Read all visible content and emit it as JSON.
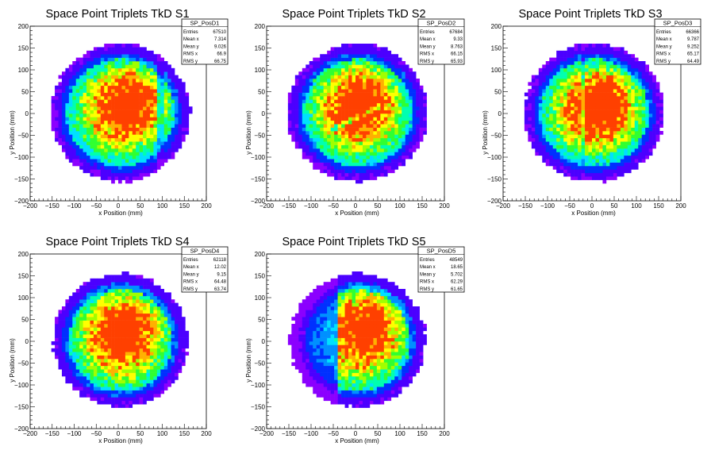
{
  "chart_data": [
    {
      "type": "heatmap",
      "title": "Space Point Triplets TkD S1",
      "xlabel": "x Position (mm)",
      "ylabel": "y Position (mm)",
      "xlim": [
        -200,
        200
      ],
      "ylim": [
        -200,
        200
      ],
      "xticks": [
        "−200",
        "−150",
        "−100",
        "−50",
        "0",
        "50",
        "100",
        "150",
        "200"
      ],
      "yticks": [
        "−200",
        "−150",
        "−100",
        "−50",
        "0",
        "50",
        "100",
        "150",
        "200"
      ],
      "stats": {
        "name": "SP_PosD1",
        "rows": [
          {
            "label": "Entries",
            "value": "67510"
          },
          {
            "label": "Mean x",
            "value": "7.314"
          },
          {
            "label": "Mean y",
            "value": "9.026"
          },
          {
            "label": "RMS x",
            "value": "66.9"
          },
          {
            "label": "RMS y",
            "value": "66.75"
          }
        ]
      },
      "distribution": {
        "center_x": 7.314,
        "center_y": 9.026,
        "radius": 155,
        "hot_spot": [
          40,
          40
        ],
        "feature": "vertical-band",
        "feature_x": 95
      }
    },
    {
      "type": "heatmap",
      "title": "Space Point Triplets TkD S2",
      "xlabel": "x Position (mm)",
      "ylabel": "y Position (mm)",
      "xlim": [
        -200,
        200
      ],
      "ylim": [
        -200,
        200
      ],
      "xticks": [
        "−200",
        "−150",
        "−100",
        "−50",
        "0",
        "50",
        "100",
        "150",
        "200"
      ],
      "yticks": [
        "−200",
        "−150",
        "−100",
        "−50",
        "0",
        "50",
        "100",
        "150",
        "200"
      ],
      "stats": {
        "name": "SP_PosD2",
        "rows": [
          {
            "label": "Entries",
            "value": "67684"
          },
          {
            "label": "Mean x",
            "value": "9.33"
          },
          {
            "label": "Mean y",
            "value": "8.763"
          },
          {
            "label": "RMS x",
            "value": "66.15"
          },
          {
            "label": "RMS y",
            "value": "65.93"
          }
        ]
      },
      "distribution": {
        "center_x": 9.33,
        "center_y": 8.763,
        "radius": 155,
        "hot_spot": [
          10,
          40
        ],
        "feature": "diagonal-band",
        "feature_x": 0
      }
    },
    {
      "type": "heatmap",
      "title": "Space Point Triplets TkD S3",
      "xlabel": "x Position (mm)",
      "ylabel": "y Position (mm)",
      "xlim": [
        -200,
        200
      ],
      "ylim": [
        -200,
        200
      ],
      "xticks": [
        "−200",
        "−150",
        "−100",
        "−50",
        "0",
        "50",
        "100",
        "150",
        "200"
      ],
      "yticks": [
        "−200",
        "−150",
        "−100",
        "−50",
        "0",
        "50",
        "100",
        "150",
        "200"
      ],
      "stats": {
        "name": "SP_PosD3",
        "rows": [
          {
            "label": "Entries",
            "value": "66366"
          },
          {
            "label": "Mean x",
            "value": "9.787"
          },
          {
            "label": "Mean y",
            "value": "9.252"
          },
          {
            "label": "RMS x",
            "value": "65.17"
          },
          {
            "label": "RMS y",
            "value": "64.49"
          }
        ]
      },
      "distribution": {
        "center_x": 9.787,
        "center_y": 9.252,
        "radius": 155,
        "hot_spot": [
          20,
          30
        ],
        "feature": "vertical-band",
        "feature_x": -20
      }
    },
    {
      "type": "heatmap",
      "title": "Space Point Triplets TkD S4",
      "xlabel": "x Position (mm)",
      "ylabel": "y Position (mm)",
      "xlim": [
        -200,
        200
      ],
      "ylim": [
        -200,
        200
      ],
      "xticks": [
        "−200",
        "−150",
        "−100",
        "−50",
        "0",
        "50",
        "100",
        "150",
        "200"
      ],
      "yticks": [
        "−200",
        "−150",
        "−100",
        "−50",
        "0",
        "50",
        "100",
        "150",
        "200"
      ],
      "stats": {
        "name": "SP_PosD4",
        "rows": [
          {
            "label": "Entries",
            "value": "62118"
          },
          {
            "label": "Mean x",
            "value": "12.02"
          },
          {
            "label": "Mean y",
            "value": "9.15"
          },
          {
            "label": "RMS x",
            "value": "64.48"
          },
          {
            "label": "RMS y",
            "value": "63.74"
          }
        ]
      },
      "distribution": {
        "center_x": 12.02,
        "center_y": 9.15,
        "radius": 150,
        "hot_spot": [
          20,
          40
        ],
        "feature": "none",
        "feature_x": 0
      }
    },
    {
      "type": "heatmap",
      "title": "Space Point Triplets TkD S5",
      "xlabel": "x Position (mm)",
      "ylabel": "y Position (mm)",
      "xlim": [
        -200,
        200
      ],
      "ylim": [
        -200,
        200
      ],
      "xticks": [
        "−200",
        "−150",
        "−100",
        "−50",
        "0",
        "50",
        "100",
        "150",
        "200"
      ],
      "yticks": [
        "−200",
        "−150",
        "−100",
        "−50",
        "0",
        "50",
        "100",
        "150",
        "200"
      ],
      "stats": {
        "name": "SP_PosD5",
        "rows": [
          {
            "label": "Entries",
            "value": "48549"
          },
          {
            "label": "Mean x",
            "value": "18.65"
          },
          {
            "label": "Mean y",
            "value": "5.702"
          },
          {
            "label": "RMS x",
            "value": "62.29"
          },
          {
            "label": "RMS y",
            "value": "61.65"
          }
        ]
      },
      "distribution": {
        "center_x": 18.65,
        "center_y": 5.702,
        "radius": 150,
        "hot_spot": [
          40,
          60
        ],
        "feature": "left-blue-region",
        "feature_x": -40
      }
    }
  ],
  "colors": {
    "palette": [
      "#8b00ff",
      "#4b00ff",
      "#0030ff",
      "#0090ff",
      "#00e0ff",
      "#00ffb0",
      "#30ff30",
      "#a0ff00",
      "#ffff00",
      "#ffb000",
      "#ff4000"
    ]
  }
}
